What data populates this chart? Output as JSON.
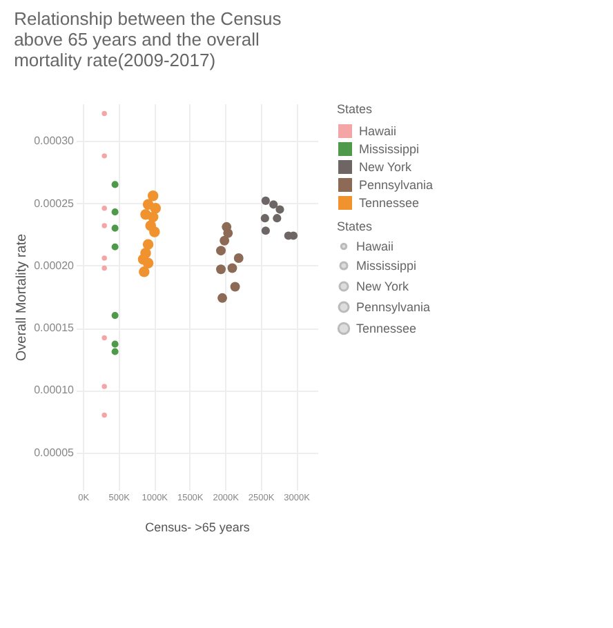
{
  "chart_data": {
    "type": "scatter",
    "title": "Relationship between the Census above 65 years and the overall mortality rate(2009-2017)",
    "xlabel": "Census- >65 years",
    "ylabel": "Overall Mortality rate",
    "legend_title": "States",
    "legend": "right",
    "grid": true,
    "xlim": [
      -100000,
      3300000
    ],
    "xticks": [
      {
        "value": 0,
        "label": "0K"
      },
      {
        "value": 500000,
        "label": "500K"
      },
      {
        "value": 1000000,
        "label": "1000K"
      },
      {
        "value": 1500000,
        "label": "1500K"
      },
      {
        "value": 2000000,
        "label": "2000K"
      },
      {
        "value": 2500000,
        "label": "2500K"
      },
      {
        "value": 3000000,
        "label": "3000K"
      }
    ],
    "ylim": [
      2e-05,
      0.00033
    ],
    "yticks": [
      {
        "value": 5e-05,
        "label": "0.00005"
      },
      {
        "value": 0.0001,
        "label": "0.00010"
      },
      {
        "value": 0.00015,
        "label": "0.00015"
      },
      {
        "value": 0.0002,
        "label": "0.00020"
      },
      {
        "value": 0.00025,
        "label": "0.00025"
      },
      {
        "value": 0.0003,
        "label": "0.00030"
      }
    ],
    "series": [
      {
        "name": "Hawaii",
        "color": "#f4a6a6",
        "x": [
          300000,
          300000,
          300000,
          300000,
          300000,
          300000,
          300000,
          300000,
          300000
        ],
        "values": [
          0.000322,
          0.000288,
          0.000246,
          0.000232,
          0.000206,
          0.000198,
          0.000142,
          0.000103,
          8e-05
        ]
      },
      {
        "name": "Mississippi",
        "color": "#4e9a4a",
        "x": [
          450000,
          450000,
          450000,
          450000,
          450000,
          450000,
          450000
        ],
        "values": [
          0.000265,
          0.000243,
          0.00023,
          0.000215,
          0.00016,
          0.000137,
          0.000131
        ]
      },
      {
        "name": "New York",
        "color": "#6e6565",
        "x": [
          2570000,
          2680000,
          2770000,
          2560000,
          2730000,
          2570000,
          2890000,
          2960000
        ],
        "values": [
          0.000252,
          0.000249,
          0.000245,
          0.000238,
          0.000238,
          0.000228,
          0.000224,
          0.000224
        ]
      },
      {
        "name": "Pennsylvania",
        "color": "#8c6a55",
        "x": [
          2020000,
          1990000,
          1940000,
          1940000,
          2100000,
          2190000,
          2140000,
          1960000,
          2040000
        ],
        "values": [
          0.000231,
          0.00022,
          0.000212,
          0.000197,
          0.000198,
          0.000206,
          0.000183,
          0.000174,
          0.000226
        ]
      },
      {
        "name": "Tennessee",
        "color": "#f0922e",
        "x": [
          985000,
          916000,
          1020000,
          881000,
          985000,
          951000,
          1006000,
          916000,
          881000,
          847000,
          916000,
          860000
        ],
        "values": [
          0.000256,
          0.000249,
          0.000246,
          0.000241,
          0.000239,
          0.000232,
          0.000227,
          0.000217,
          0.00021,
          0.000205,
          0.000202,
          0.000195
        ]
      }
    ]
  }
}
